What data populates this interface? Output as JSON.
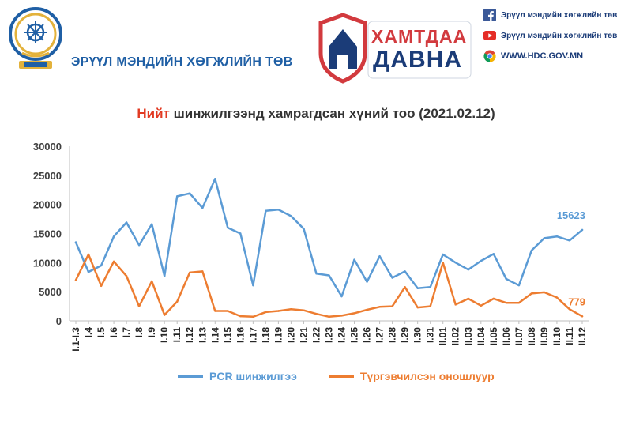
{
  "header": {
    "org_name": "ЭРҮҮЛ МЭНДИЙН ХӨГЖЛИЙН ТӨВ",
    "campaign_line1": "ХАМТДАА",
    "campaign_line2": "ДАВНА",
    "social": [
      {
        "icon": "facebook-icon",
        "text": "Эрүүл мэндийн хөгжлийн төв"
      },
      {
        "icon": "youtube-icon",
        "text": "Эрүүл мэндийн хөгжлийн төв"
      },
      {
        "icon": "chrome-icon",
        "text": "WWW.HDC.GOV.MN"
      }
    ]
  },
  "colors": {
    "pcr": "#5b9bd5",
    "rapid": "#ed7d31",
    "title_highlight": "#e23a22",
    "brand_blue": "#1b3c78"
  },
  "chart_data": {
    "type": "line",
    "title_highlight": "Нийт",
    "title_rest": " шинжилгээнд хамрагдсан хүний тоо (2021.02.12)",
    "xlabel": "",
    "ylabel": "",
    "ylim": [
      0,
      30000
    ],
    "yticks": [
      "30000",
      "25000",
      "20000",
      "15000",
      "10000",
      "5000",
      "0"
    ],
    "grid": false,
    "legend_position": "bottom",
    "categories": [
      "I.1-I.3",
      "I.4",
      "I.5",
      "I.6",
      "I.7",
      "I.8",
      "I.9",
      "I.10",
      "I.11",
      "I.12",
      "I.13",
      "I.14",
      "I.15",
      "I.16",
      "I.17",
      "I.18",
      "I.19",
      "I.20",
      "I.21",
      "I.22",
      "I.23",
      "I.24",
      "I.25",
      "I.26",
      "I.27",
      "I.28",
      "I.29",
      "I.30",
      "I.31",
      "II.01",
      "II.02",
      "II.03",
      "II.04",
      "II.05",
      "II.06",
      "II.07",
      "II.08",
      "II.09",
      "II.10",
      "II.11",
      "II.12"
    ],
    "series": [
      {
        "name": "PCR шинжилгээ",
        "values": [
          13500,
          8400,
          9500,
          14500,
          16900,
          13000,
          16600,
          7700,
          21400,
          21900,
          19400,
          24400,
          16000,
          15000,
          6100,
          18900,
          19100,
          18000,
          15800,
          8100,
          7800,
          4200,
          10500,
          6700,
          11100,
          7400,
          8500,
          5600,
          5800,
          11400,
          10000,
          8800,
          10300,
          11500,
          7200,
          6100,
          12100,
          14200,
          14500,
          13800,
          15623
        ],
        "end_label": "15623"
      },
      {
        "name": "Түргэвчилсэн оношлуур",
        "values": [
          7000,
          11400,
          6000,
          10200,
          7700,
          2500,
          6800,
          1000,
          3300,
          8300,
          8500,
          1700,
          1700,
          800,
          700,
          1500,
          1700,
          2000,
          1800,
          1200,
          700,
          900,
          1300,
          1900,
          2400,
          2500,
          5800,
          2300,
          2500,
          10000,
          2800,
          3800,
          2600,
          3800,
          3100,
          3100,
          4700,
          4900,
          4000,
          2000,
          779
        ],
        "end_label": "779"
      }
    ]
  }
}
